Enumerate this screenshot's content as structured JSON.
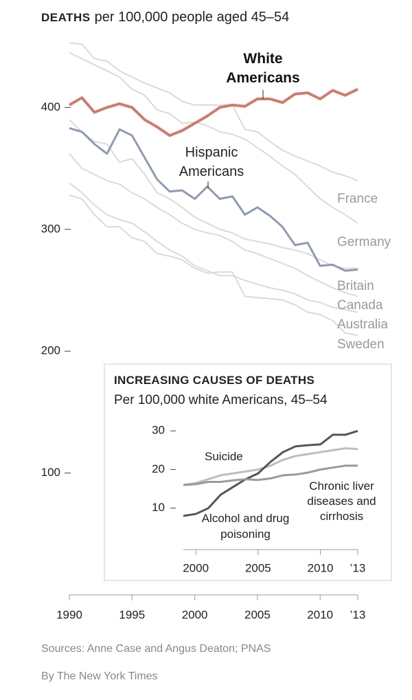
{
  "chart_data": [
    {
      "type": "line",
      "title": "DEATHS",
      "subtitle": "per 100,000 people aged 45–54",
      "x": [
        1990,
        1991,
        1992,
        1993,
        1994,
        1995,
        1996,
        1997,
        1998,
        1999,
        2000,
        2001,
        2002,
        2003,
        2004,
        2005,
        2006,
        2007,
        2008,
        2009,
        2010,
        2011,
        2012,
        2013
      ],
      "xlim": [
        1990,
        2013
      ],
      "xticks": [
        1990,
        1995,
        2000,
        2005,
        2010,
        {
          "value": 2013,
          "label": "’13"
        }
      ],
      "ylim": [
        0,
        460
      ],
      "yticks": [
        100,
        200,
        300,
        400
      ],
      "series": [
        {
          "name": "France",
          "color": "#dadada",
          "values": [
            453,
            452,
            440,
            438,
            430,
            425,
            420,
            416,
            412,
            405,
            402,
            402,
            402,
            402,
            382,
            380,
            372,
            365,
            360,
            356,
            352,
            347,
            344,
            340
          ]
        },
        {
          "name": "Germany",
          "color": "#dadada",
          "values": [
            445,
            440,
            435,
            430,
            425,
            415,
            410,
            398,
            395,
            387,
            388,
            385,
            380,
            378,
            374,
            367,
            360,
            352,
            345,
            335,
            325,
            318,
            312,
            305
          ]
        },
        {
          "name": "Britain",
          "color": "#dadada",
          "values": [
            390,
            380,
            372,
            370,
            355,
            358,
            345,
            330,
            325,
            318,
            310,
            305,
            300,
            297,
            292,
            290,
            288,
            285,
            283,
            280,
            275,
            270,
            268,
            268
          ]
        },
        {
          "name": "Canada",
          "color": "#dadada",
          "values": [
            362,
            350,
            345,
            340,
            337,
            330,
            325,
            318,
            312,
            305,
            300,
            297,
            295,
            290,
            283,
            280,
            276,
            272,
            268,
            262,
            257,
            252,
            248,
            245
          ]
        },
        {
          "name": "Australia",
          "color": "#dadada",
          "values": [
            338,
            330,
            320,
            312,
            308,
            305,
            298,
            290,
            283,
            278,
            270,
            266,
            262,
            262,
            258,
            255,
            252,
            250,
            247,
            242,
            240,
            236,
            234,
            232
          ]
        },
        {
          "name": "Sweden",
          "color": "#dadada",
          "values": [
            328,
            325,
            312,
            302,
            302,
            293,
            290,
            280,
            278,
            275,
            268,
            264,
            265,
            265,
            245,
            244,
            243,
            242,
            238,
            232,
            230,
            225,
            215,
            213
          ]
        },
        {
          "name": "Hispanic Americans",
          "color": "#8f9ab3",
          "values": [
            383,
            380,
            370,
            362,
            382,
            377,
            359,
            341,
            331,
            332,
            325,
            335,
            325,
            327,
            312,
            318,
            311,
            302,
            287,
            289,
            270,
            271,
            266,
            267
          ]
        },
        {
          "name": "White Americans",
          "color": "#cf7b6d",
          "values": [
            402,
            408,
            396,
            400,
            403,
            400,
            390,
            384,
            377,
            381,
            387,
            393,
            400,
            402,
            401,
            407,
            407,
            404,
            411,
            412,
            407,
            414,
            410,
            415
          ]
        }
      ],
      "source": "Sources: Anne Case and Angus Deaton; PNAS",
      "credit": "By The New York Times"
    },
    {
      "type": "line",
      "title": "INCREASING CAUSES OF DEATHS",
      "subtitle": "Per 100,000 white Americans, 45–54",
      "x": [
        1999,
        2000,
        2001,
        2002,
        2003,
        2004,
        2005,
        2006,
        2007,
        2008,
        2009,
        2010,
        2011,
        2012,
        2013
      ],
      "xlim": [
        1999,
        2013
      ],
      "xticks": [
        2000,
        2005,
        2010,
        {
          "value": 2013,
          "label": "’13"
        }
      ],
      "ylim": [
        0,
        32
      ],
      "yticks": [
        10,
        20,
        30
      ],
      "series": [
        {
          "name": "Suicide",
          "color": "#bdbdbd",
          "values": [
            16,
            16.5,
            17.5,
            18.5,
            19,
            19.5,
            20,
            21,
            22.5,
            23.5,
            24,
            24.5,
            25,
            25.5,
            25.3
          ]
        },
        {
          "name": "Alcohol and drug poisoning",
          "color": "#555555",
          "values": [
            8,
            8.5,
            10,
            13.5,
            15.5,
            17.5,
            19,
            22,
            24.5,
            26,
            26.3,
            26.5,
            29,
            29,
            30
          ]
        },
        {
          "name": "Chronic liver diseases and cirrhosis",
          "color": "#9a9a9a",
          "values": [
            16,
            16.2,
            16.8,
            16.8,
            17.2,
            17.5,
            17.3,
            17.7,
            18.5,
            18.7,
            19.2,
            20,
            20.5,
            21,
            21
          ]
        }
      ]
    }
  ]
}
